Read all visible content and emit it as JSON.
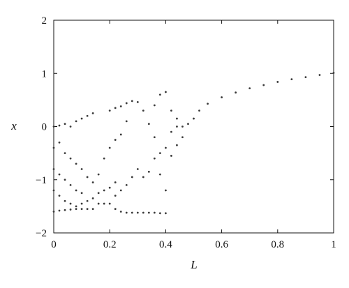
{
  "chart_data": {
    "type": "scatter",
    "title": "",
    "xlabel": "L",
    "ylabel": "x",
    "xlim": [
      0,
      1
    ],
    "ylim": [
      -2,
      2
    ],
    "grid": false,
    "legend": "none",
    "point_color": "#3a3a3a",
    "x_ticks": [
      {
        "value": 0,
        "label": "0"
      },
      {
        "value": 0.2,
        "label": "0.2"
      },
      {
        "value": 0.4,
        "label": "0.4"
      },
      {
        "value": 0.6,
        "label": "0.6"
      },
      {
        "value": 0.8,
        "label": "0.8"
      },
      {
        "value": 1,
        "label": "1"
      }
    ],
    "y_ticks": [
      {
        "value": -2,
        "label": "−2"
      },
      {
        "value": -1,
        "label": "−1"
      },
      {
        "value": 0,
        "label": "0"
      },
      {
        "value": 1,
        "label": "1"
      },
      {
        "value": 2,
        "label": "2"
      }
    ],
    "series": [
      {
        "points": [
          [
            0.0,
            -1.6
          ],
          [
            0.0,
            -1.2
          ],
          [
            0.0,
            -0.8
          ],
          [
            0.0,
            -0.4
          ],
          [
            0.0,
            0.0
          ],
          [
            0.02,
            -1.58
          ],
          [
            0.02,
            -1.3
          ],
          [
            0.02,
            -0.9
          ],
          [
            0.02,
            -0.3
          ],
          [
            0.02,
            0.02
          ],
          [
            0.04,
            -1.57
          ],
          [
            0.04,
            -1.4
          ],
          [
            0.04,
            -1.0
          ],
          [
            0.04,
            -0.5
          ],
          [
            0.04,
            0.05
          ],
          [
            0.06,
            -1.56
          ],
          [
            0.06,
            -1.45
          ],
          [
            0.06,
            -1.1
          ],
          [
            0.06,
            -0.6
          ],
          [
            0.06,
            0.0
          ],
          [
            0.08,
            -1.55
          ],
          [
            0.08,
            -1.5
          ],
          [
            0.08,
            -1.2
          ],
          [
            0.08,
            -0.7
          ],
          [
            0.08,
            0.1
          ],
          [
            0.1,
            -1.55
          ],
          [
            0.1,
            -1.45
          ],
          [
            0.1,
            -1.25
          ],
          [
            0.1,
            -0.8
          ],
          [
            0.1,
            0.15
          ],
          [
            0.12,
            -1.55
          ],
          [
            0.12,
            -1.4
          ],
          [
            0.12,
            -0.95
          ],
          [
            0.12,
            0.2
          ],
          [
            0.14,
            -1.55
          ],
          [
            0.14,
            -1.35
          ],
          [
            0.14,
            -1.05
          ],
          [
            0.14,
            0.25
          ],
          [
            0.16,
            -1.45
          ],
          [
            0.16,
            -1.25
          ],
          [
            0.16,
            -0.9
          ],
          [
            0.18,
            -1.45
          ],
          [
            0.18,
            -1.2
          ],
          [
            0.18,
            -0.6
          ],
          [
            0.2,
            -1.45
          ],
          [
            0.2,
            -1.15
          ],
          [
            0.2,
            -0.4
          ],
          [
            0.2,
            0.3
          ],
          [
            0.22,
            -1.55
          ],
          [
            0.22,
            -1.3
          ],
          [
            0.22,
            -1.05
          ],
          [
            0.22,
            -0.25
          ],
          [
            0.22,
            0.35
          ],
          [
            0.24,
            -1.6
          ],
          [
            0.24,
            -1.2
          ],
          [
            0.24,
            -0.15
          ],
          [
            0.24,
            0.38
          ],
          [
            0.26,
            -1.62
          ],
          [
            0.26,
            -1.1
          ],
          [
            0.26,
            0.1
          ],
          [
            0.26,
            0.44
          ],
          [
            0.28,
            -1.62
          ],
          [
            0.28,
            -0.95
          ],
          [
            0.28,
            0.48
          ],
          [
            0.3,
            -1.62
          ],
          [
            0.3,
            -0.8
          ],
          [
            0.3,
            0.46
          ],
          [
            0.32,
            -1.62
          ],
          [
            0.32,
            -0.95
          ],
          [
            0.32,
            0.3
          ],
          [
            0.34,
            -1.62
          ],
          [
            0.34,
            -0.85
          ],
          [
            0.34,
            0.05
          ],
          [
            0.36,
            -1.62
          ],
          [
            0.36,
            -0.6
          ],
          [
            0.36,
            -0.2
          ],
          [
            0.36,
            0.4
          ],
          [
            0.38,
            -1.63
          ],
          [
            0.38,
            -0.9
          ],
          [
            0.38,
            -0.5
          ],
          [
            0.38,
            0.6
          ],
          [
            0.4,
            -1.63
          ],
          [
            0.4,
            -1.2
          ],
          [
            0.4,
            -0.4
          ],
          [
            0.4,
            0.65
          ],
          [
            0.42,
            -0.55
          ],
          [
            0.42,
            -0.1
          ],
          [
            0.42,
            0.3
          ],
          [
            0.44,
            -0.35
          ],
          [
            0.44,
            0.0
          ],
          [
            0.44,
            0.15
          ],
          [
            0.46,
            -0.2
          ],
          [
            0.46,
            0.0
          ],
          [
            0.48,
            0.05
          ],
          [
            0.5,
            0.15
          ],
          [
            0.52,
            0.3
          ],
          [
            0.55,
            0.43
          ],
          [
            0.6,
            0.55
          ],
          [
            0.65,
            0.64
          ],
          [
            0.7,
            0.72
          ],
          [
            0.75,
            0.78
          ],
          [
            0.8,
            0.84
          ],
          [
            0.85,
            0.89
          ],
          [
            0.9,
            0.93
          ],
          [
            0.95,
            0.97
          ],
          [
            1.0,
            1.01
          ]
        ]
      }
    ]
  }
}
